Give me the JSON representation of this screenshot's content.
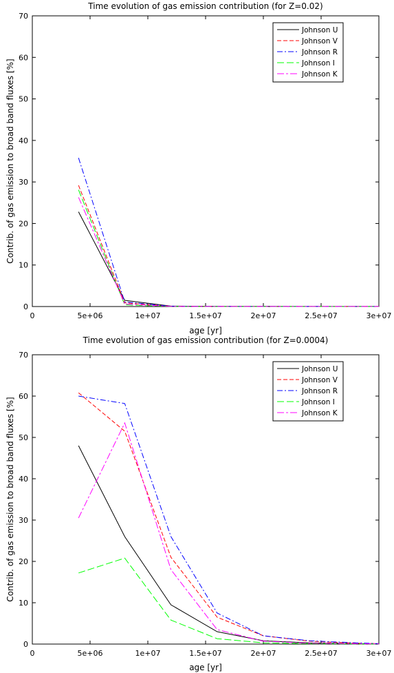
{
  "chart_data": [
    {
      "type": "line",
      "title": "Time evolution of gas emission contribution  (for Z=0.02)",
      "xlabel": "age [yr]",
      "ylabel": "Contrib. of gas emission to broad band fluxes [%]",
      "xlim": [
        0,
        30000000
      ],
      "ylim": [
        0,
        70
      ],
      "xticks": [
        0,
        5000000,
        10000000,
        15000000,
        20000000,
        25000000,
        30000000
      ],
      "xtick_labels": [
        "0",
        "5e+06",
        "1e+07",
        "1.5e+07",
        "2e+07",
        "2.5e+07",
        "3e+07"
      ],
      "yticks": [
        0,
        10,
        20,
        30,
        40,
        50,
        60,
        70
      ],
      "ytick_labels": [
        "0",
        "10",
        "20",
        "30",
        "40",
        "50",
        "60",
        "70"
      ],
      "legend": "top-right",
      "x": [
        4000000,
        8000000,
        12000000,
        16000000,
        20000000,
        24000000,
        28000000,
        30000000
      ],
      "series": [
        {
          "name": "Johnson U",
          "color": "#000000",
          "dash": "solid",
          "values": [
            22.8,
            1.5,
            0.1,
            0.05,
            0.03,
            0.02,
            0.01,
            0.01
          ]
        },
        {
          "name": "Johnson V",
          "color": "#ff0000",
          "dash": "dashed",
          "values": [
            29.2,
            0.9,
            0.05,
            0.03,
            0.02,
            0.01,
            0.01,
            0.01
          ]
        },
        {
          "name": "Johnson R",
          "color": "#0000ff",
          "dash": "dashdot",
          "values": [
            35.8,
            1.1,
            0.06,
            0.03,
            0.02,
            0.01,
            0.01,
            0.01
          ]
        },
        {
          "name": "Johnson I",
          "color": "#00ff00",
          "dash": "longdash",
          "values": [
            28.1,
            0.4,
            0.03,
            0.02,
            0.01,
            0.01,
            0.01,
            0.01
          ]
        },
        {
          "name": "Johnson K",
          "color": "#ff00ff",
          "dash": "dashdot2",
          "values": [
            26.3,
            0.6,
            0.04,
            0.02,
            0.01,
            0.01,
            0.01,
            0.01
          ]
        }
      ]
    },
    {
      "type": "line",
      "title": "Time evolution of gas emission contribution  (for Z=0.0004)",
      "xlabel": "age [yr]",
      "ylabel": "Contrib. of gas emission to broad band fluxes [%]",
      "xlim": [
        0,
        30000000
      ],
      "ylim": [
        0,
        70
      ],
      "xticks": [
        0,
        5000000,
        10000000,
        15000000,
        20000000,
        25000000,
        30000000
      ],
      "xtick_labels": [
        "0",
        "5e+06",
        "1e+07",
        "1.5e+07",
        "2e+07",
        "2.5e+07",
        "3e+07"
      ],
      "yticks": [
        0,
        10,
        20,
        30,
        40,
        50,
        60,
        70
      ],
      "ytick_labels": [
        "0",
        "10",
        "20",
        "30",
        "40",
        "50",
        "60",
        "70"
      ],
      "legend": "top-right",
      "x": [
        4000000,
        8000000,
        12000000,
        16000000,
        20000000,
        24000000,
        28000000,
        30000000
      ],
      "series": [
        {
          "name": "Johnson U",
          "color": "#000000",
          "dash": "solid",
          "values": [
            48.0,
            26.0,
            9.5,
            3.0,
            0.8,
            0.3,
            0.1,
            0.05
          ]
        },
        {
          "name": "Johnson V",
          "color": "#ff0000",
          "dash": "dashed",
          "values": [
            60.8,
            51.5,
            21.0,
            6.5,
            2.0,
            0.7,
            0.2,
            0.1
          ]
        },
        {
          "name": "Johnson R",
          "color": "#0000ff",
          "dash": "dashdot",
          "values": [
            60.0,
            58.2,
            26.0,
            7.5,
            2.0,
            0.8,
            0.3,
            0.1
          ]
        },
        {
          "name": "Johnson I",
          "color": "#00ff00",
          "dash": "longdash",
          "values": [
            17.2,
            20.8,
            5.8,
            1.3,
            0.3,
            0.1,
            0.05,
            0.02
          ]
        },
        {
          "name": "Johnson K",
          "color": "#ff00ff",
          "dash": "dashdot2",
          "values": [
            30.5,
            53.5,
            18.0,
            3.5,
            0.7,
            0.2,
            0.1,
            0.05
          ]
        }
      ]
    }
  ]
}
